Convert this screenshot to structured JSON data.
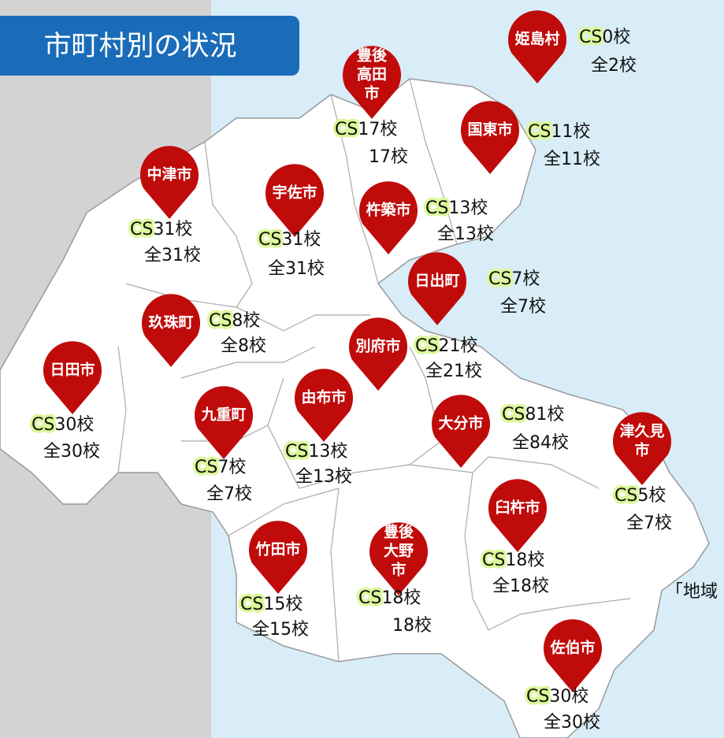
{
  "header": {
    "title": "市町村別の状況"
  },
  "cs_prefix": "CS",
  "side_note": "「地域",
  "municipalities": [
    {
      "name": [
        "姫島村"
      ],
      "cs": "0校",
      "total": "全2校"
    },
    {
      "name": [
        "豊後",
        "高田",
        "市"
      ],
      "cs": "17校",
      "total": "17校"
    },
    {
      "name": [
        "国東市"
      ],
      "cs": "11校",
      "total": "全11校"
    },
    {
      "name": [
        "中津市"
      ],
      "cs": "31校",
      "total": "全31校"
    },
    {
      "name": [
        "宇佐市"
      ],
      "cs": "31校",
      "total": "全31校"
    },
    {
      "name": [
        "杵築市"
      ],
      "cs": "13校",
      "total": "全13校"
    },
    {
      "name": [
        "日出町"
      ],
      "cs": "7校",
      "total": "全7校"
    },
    {
      "name": [
        "玖珠町"
      ],
      "cs": "8校",
      "total": "全8校"
    },
    {
      "name": [
        "別府市"
      ],
      "cs": "21校",
      "total": "全21校"
    },
    {
      "name": [
        "日田市"
      ],
      "cs": "30校",
      "total": "全30校"
    },
    {
      "name": [
        "九重町"
      ],
      "cs": "7校",
      "total": "全7校"
    },
    {
      "name": [
        "由布市"
      ],
      "cs": "13校",
      "total": "全13校"
    },
    {
      "name": [
        "大分市"
      ],
      "cs": "81校",
      "total": "全84校"
    },
    {
      "name": [
        "津久見",
        "市"
      ],
      "cs": "5校",
      "total": "全7校"
    },
    {
      "name": [
        "臼杵市"
      ],
      "cs": "18校",
      "total": "全18校"
    },
    {
      "name": [
        "竹田市"
      ],
      "cs": "15校",
      "total": "全15校"
    },
    {
      "name": [
        "豊後",
        "大野",
        "市"
      ],
      "cs": "18校",
      "total": "18校"
    },
    {
      "name": [
        "佐伯市"
      ],
      "cs": "30校",
      "total": "全30校"
    }
  ]
}
